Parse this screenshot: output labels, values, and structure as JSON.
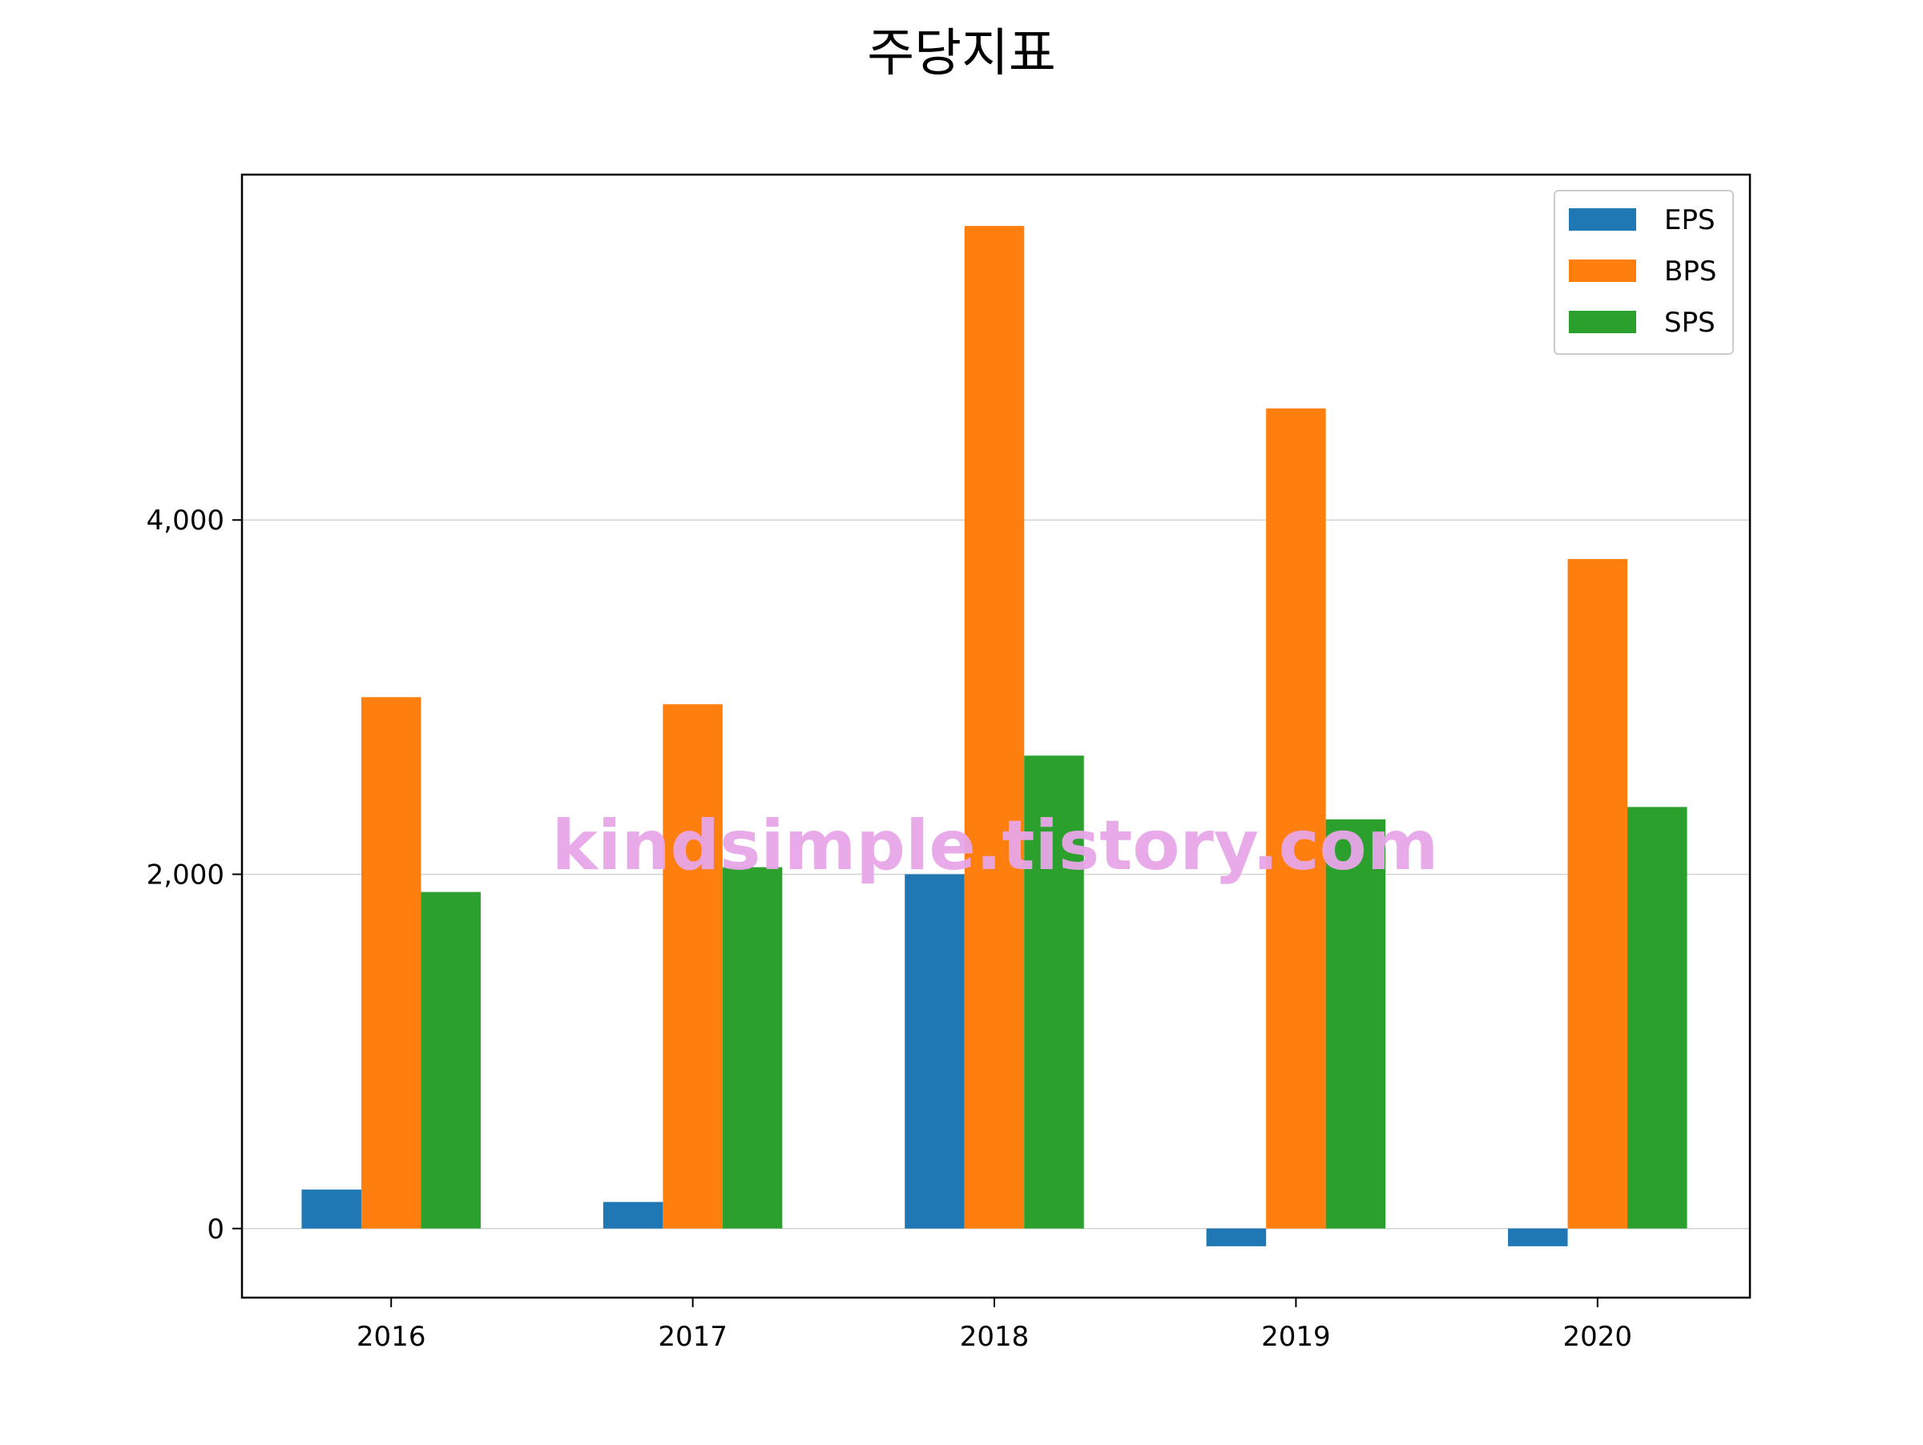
{
  "chart_data": {
    "type": "bar",
    "title": "주당지표",
    "xlabel": "",
    "ylabel": "",
    "categories": [
      "2016",
      "2017",
      "2018",
      "2019",
      "2020"
    ],
    "series": [
      {
        "name": "EPS",
        "color": "#1f77b4",
        "values": [
          220,
          150,
          2000,
          -100,
          -100
        ]
      },
      {
        "name": "BPS",
        "color": "#ff7f0e",
        "values": [
          3000,
          2960,
          5660,
          4630,
          3780
        ]
      },
      {
        "name": "SPS",
        "color": "#2ca02c",
        "values": [
          1900,
          2040,
          2670,
          2310,
          2380
        ]
      }
    ],
    "ylim": [
      -390,
      5950
    ],
    "yticks": [
      0,
      2000,
      4000
    ],
    "ytick_labels": [
      "0",
      "2,000",
      "4,000"
    ],
    "grid": "y",
    "legend_position": "top-right",
    "watermark": "kindsimple.tistory.com"
  }
}
